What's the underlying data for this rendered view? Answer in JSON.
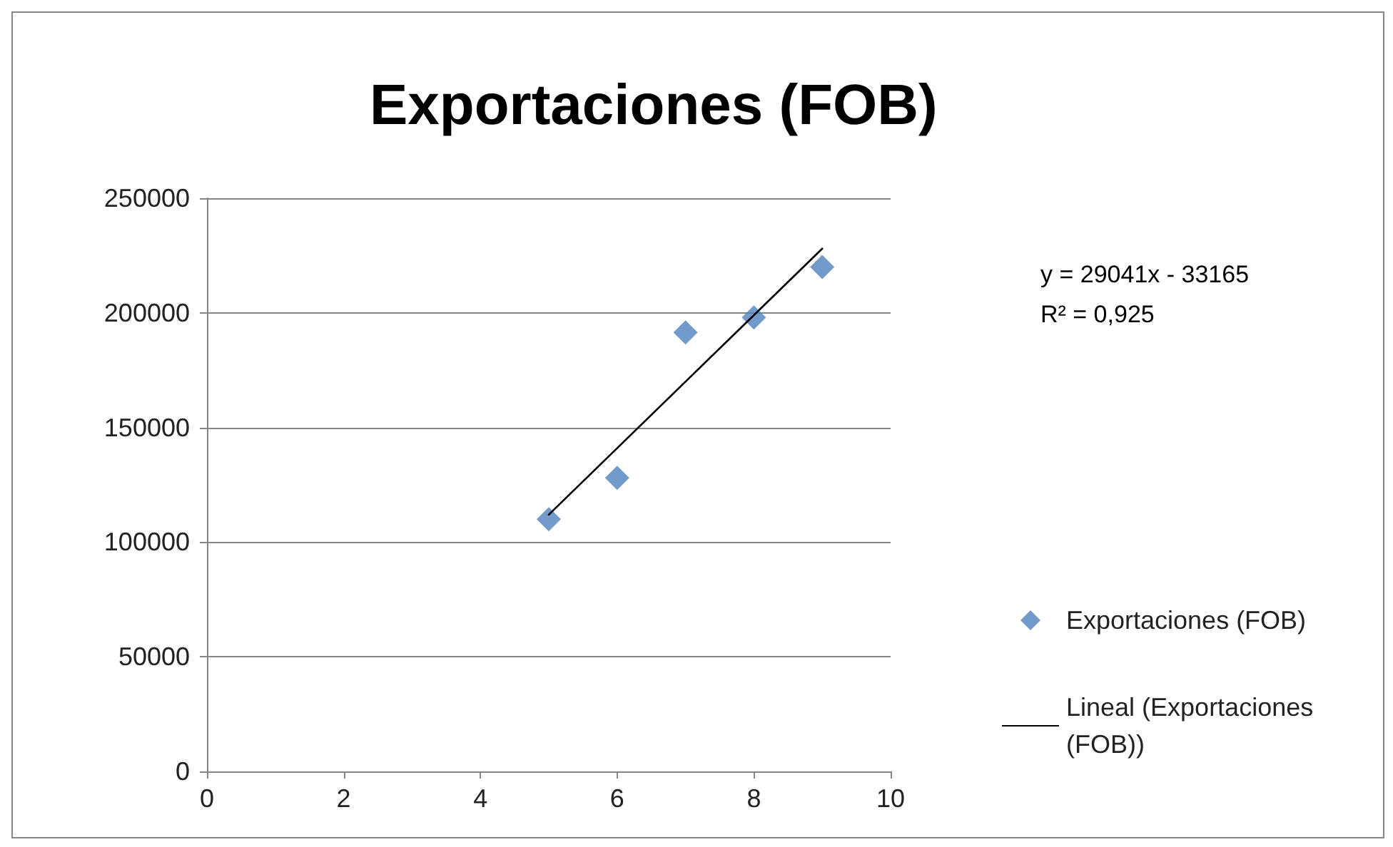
{
  "chart_data": {
    "type": "scatter",
    "title": "Exportaciones (FOB)",
    "x": [
      5,
      6,
      7,
      8,
      9
    ],
    "series": [
      {
        "name": "Exportaciones (FOB)",
        "color": "#4f81bd",
        "marker": "diamond",
        "values": [
          110000,
          128000,
          191500,
          198000,
          220000
        ]
      },
      {
        "name": "Lineal (Exportaciones (FOB))",
        "color": "#000000",
        "type": "line",
        "marker": "none",
        "x": [
          5,
          9
        ],
        "values": [
          112000,
          228000
        ]
      }
    ],
    "xlim": [
      0,
      10
    ],
    "xticks": [
      0,
      2,
      4,
      6,
      8,
      10
    ],
    "ylim": [
      0,
      250000
    ],
    "yticks": [
      0,
      50000,
      100000,
      150000,
      200000,
      250000
    ],
    "grid": "y",
    "legend": "right",
    "line_style": "solid",
    "annotations": [
      "y = 29041x - 33165",
      "R² = 0,925"
    ]
  }
}
